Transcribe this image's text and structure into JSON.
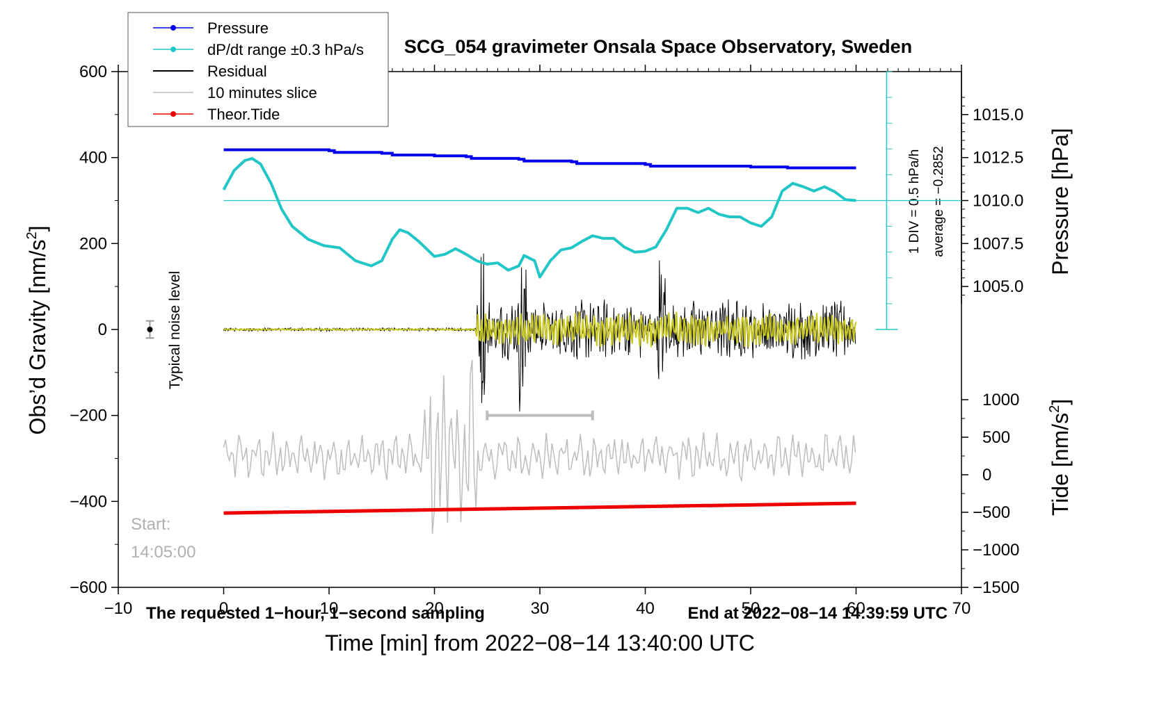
{
  "chart_data": {
    "type": "line",
    "title": "SCG_054 gravimeter Onsala Space Observatory, Sweden",
    "xlabel": "Time [min] from 2022−08−14 13:40:00 UTC",
    "xlim": [
      -10,
      70
    ],
    "x_ticks": [
      -10,
      0,
      10,
      20,
      30,
      40,
      50,
      60,
      70
    ],
    "left_axis": {
      "label": "Obs’d Gravity [nm/s",
      "label_sup": "2",
      "label_end": "]",
      "ylim": [
        -600,
        600
      ],
      "ticks": [
        -600,
        -400,
        -200,
        0,
        200,
        400,
        600
      ]
    },
    "pressure_axis": {
      "label": "Pressure [hPa]",
      "ylim_hpa": [
        1004.0,
        1016.5
      ],
      "ticks": [
        1005.0,
        1007.5,
        1010.0,
        1012.5,
        1015.0
      ]
    },
    "tide_axis": {
      "label": "Tide [nm/s",
      "label_sup": "2",
      "label_end": "]",
      "ylim": [
        -1500,
        1000
      ],
      "ticks": [
        -1500,
        -1000,
        -500,
        0,
        500,
        1000
      ]
    },
    "dpdt_scale": {
      "div_label": "1 DIV = 0.5 hPa/h",
      "average_label": "average = −0.2852",
      "reference_gravity": 300
    },
    "legend": {
      "placement": "top-left",
      "entries": [
        {
          "label": "Pressure",
          "color": "#0000ee",
          "marker": true
        },
        {
          "label": "dP/dt range ±0.3 hPa/s",
          "color": "#22c6c6",
          "marker": true
        },
        {
          "label": "Residual",
          "color": "#000000",
          "marker": false
        },
        {
          "label": "10 minutes slice",
          "color": "#bdbdbd",
          "marker": false
        },
        {
          "label": "Theor.Tide",
          "color": "#ee0000",
          "marker": true
        }
      ]
    },
    "annotations": {
      "noise_label": "Typical noise level",
      "noise_marker": {
        "x": -7,
        "y": 0,
        "err": 20
      },
      "start_label_1": "Start:",
      "start_label_2": "14:05:00",
      "bottom_left": "The requested 1−hour, 1−second sampling",
      "bottom_right": "End at 2022−08−14 14:39:59 UTC",
      "slice_bar": {
        "x_start": 25,
        "x_end": 35,
        "y": -200
      }
    },
    "series": {
      "pressure": {
        "name": "Pressure",
        "color": "#0000ee",
        "unit": "hPa",
        "x": [
          0,
          5,
          10,
          10.5,
          15,
          16,
          20,
          23,
          23.5,
          28,
          28.5,
          33,
          33.5,
          40,
          40.5,
          45,
          50,
          53,
          53.5,
          60
        ],
        "y": [
          1012.95,
          1012.95,
          1012.9,
          1012.8,
          1012.75,
          1012.65,
          1012.6,
          1012.55,
          1012.45,
          1012.4,
          1012.3,
          1012.25,
          1012.15,
          1012.1,
          1012.0,
          1012.0,
          1011.95,
          1011.95,
          1011.9,
          1011.9
        ]
      },
      "dpdt": {
        "name": "dP/dt",
        "color": "#22c6c6",
        "x": [
          0,
          1,
          2,
          2.7,
          3.5,
          4.5,
          5.5,
          6.5,
          8,
          9.5,
          11,
          12.5,
          14,
          15,
          16,
          16.7,
          17.5,
          18.5,
          20,
          21,
          22,
          23,
          24,
          25,
          26,
          27,
          28,
          28.5,
          29.5,
          30,
          31,
          32,
          33,
          34,
          35,
          36,
          37,
          38,
          39,
          40,
          41,
          42,
          43,
          44,
          45,
          46,
          47,
          48,
          49,
          50,
          51,
          52,
          53,
          54,
          55,
          56,
          57,
          58,
          59,
          60
        ],
        "y": [
          325,
          370,
          393,
          398,
          385,
          340,
          280,
          240,
          210,
          195,
          190,
          160,
          148,
          160,
          210,
          232,
          225,
          205,
          170,
          175,
          188,
          175,
          160,
          152,
          155,
          138,
          148,
          172,
          160,
          122,
          160,
          185,
          190,
          205,
          218,
          212,
          212,
          192,
          180,
          182,
          192,
          232,
          282,
          282,
          272,
          282,
          268,
          262,
          262,
          248,
          240,
          262,
          322,
          340,
          332,
          322,
          332,
          320,
          302,
          300
        ]
      },
      "theor_tide": {
        "name": "Theor.Tide",
        "color": "#ee0000",
        "unit": "nm/s2",
        "x": [
          0,
          60
        ],
        "y": [
          -510,
          -380
        ]
      }
    }
  }
}
